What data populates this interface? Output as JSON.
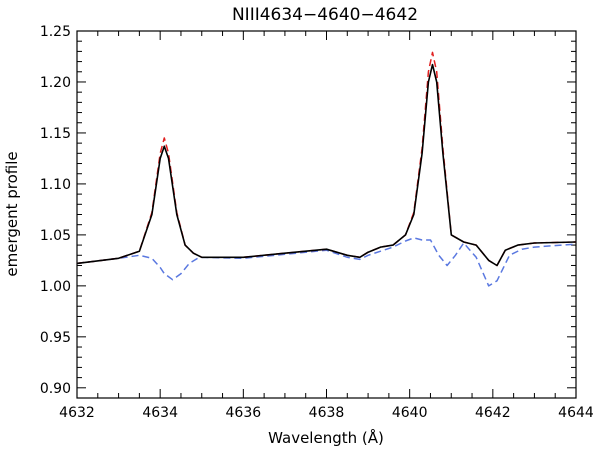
{
  "chart_data": {
    "type": "line",
    "title": "NIII4634−4640−4642",
    "xlabel": "Wavelength (Å)",
    "ylabel": "emergent  profile",
    "xlim": [
      4632,
      4644
    ],
    "ylim": [
      0.89,
      1.25
    ],
    "x_ticks": [
      "4632",
      "4634",
      "4636",
      "4638",
      "4640",
      "4642",
      "4644"
    ],
    "y_ticks": [
      "0.90",
      "0.95",
      "1.00",
      "1.05",
      "1.10",
      "1.15",
      "1.20",
      "1.25"
    ],
    "grid": false,
    "series": [
      {
        "style": "solid",
        "color": "#000000",
        "x": [
          4632.0,
          4633.0,
          4633.5,
          4633.8,
          4634.0,
          4634.1,
          4634.2,
          4634.4,
          4634.6,
          4634.8,
          4635.0,
          4636.0,
          4637.0,
          4638.0,
          4638.5,
          4638.8,
          4639.0,
          4639.3,
          4639.6,
          4639.9,
          4640.1,
          4640.3,
          4640.45,
          4640.55,
          4640.65,
          4640.8,
          4641.0,
          4641.3,
          4641.6,
          4641.9,
          4642.1,
          4642.3,
          4642.6,
          4643.0,
          4644.0
        ],
        "y": [
          1.022,
          1.027,
          1.034,
          1.07,
          1.125,
          1.137,
          1.125,
          1.07,
          1.04,
          1.032,
          1.028,
          1.028,
          1.032,
          1.036,
          1.03,
          1.028,
          1.033,
          1.038,
          1.04,
          1.05,
          1.07,
          1.13,
          1.2,
          1.217,
          1.2,
          1.13,
          1.05,
          1.043,
          1.04,
          1.025,
          1.02,
          1.035,
          1.04,
          1.042,
          1.043
        ]
      },
      {
        "style": "dashed",
        "color": "#e02020",
        "x": [
          4632.0,
          4633.0,
          4633.5,
          4633.8,
          4634.0,
          4634.1,
          4634.2,
          4634.4,
          4634.6,
          4634.8,
          4635.0,
          4636.0,
          4637.0,
          4638.0,
          4638.5,
          4638.8,
          4639.0,
          4639.3,
          4639.6,
          4639.9,
          4640.1,
          4640.3,
          4640.45,
          4640.55,
          4640.65,
          4640.8,
          4641.0,
          4641.3,
          4641.6,
          4641.9,
          4642.1,
          4642.3,
          4642.6,
          4643.0,
          4644.0
        ],
        "y": [
          1.022,
          1.027,
          1.034,
          1.072,
          1.13,
          1.145,
          1.13,
          1.072,
          1.04,
          1.032,
          1.028,
          1.028,
          1.032,
          1.036,
          1.03,
          1.028,
          1.033,
          1.038,
          1.04,
          1.05,
          1.072,
          1.135,
          1.21,
          1.229,
          1.21,
          1.135,
          1.05,
          1.043,
          1.04,
          1.025,
          1.02,
          1.035,
          1.04,
          1.042,
          1.043
        ]
      },
      {
        "style": "dashed",
        "color": "#5a78e0",
        "x": [
          4632.0,
          4633.0,
          4633.5,
          4633.8,
          4634.0,
          4634.1,
          4634.3,
          4634.5,
          4634.7,
          4634.9,
          4635.0,
          4636.0,
          4637.0,
          4638.0,
          4638.5,
          4638.8,
          4639.0,
          4639.3,
          4639.6,
          4639.9,
          4640.1,
          4640.3,
          4640.5,
          4640.7,
          4640.9,
          4641.1,
          4641.3,
          4641.6,
          4641.9,
          4642.1,
          4642.4,
          4642.7,
          4643.0,
          4644.0
        ],
        "y": [
          1.022,
          1.027,
          1.03,
          1.027,
          1.018,
          1.012,
          1.006,
          1.012,
          1.022,
          1.027,
          1.028,
          1.027,
          1.031,
          1.035,
          1.028,
          1.026,
          1.03,
          1.034,
          1.038,
          1.044,
          1.047,
          1.045,
          1.045,
          1.03,
          1.02,
          1.03,
          1.042,
          1.028,
          1.0,
          1.005,
          1.03,
          1.036,
          1.038,
          1.041
        ]
      }
    ]
  }
}
